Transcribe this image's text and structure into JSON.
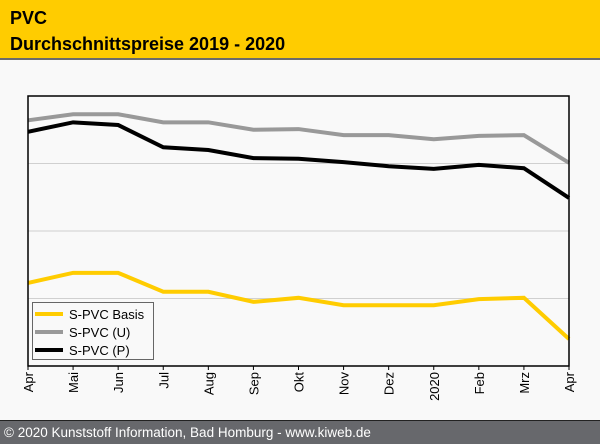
{
  "header": {
    "title": "PVC",
    "subtitle": "Durchschnittspreise 2019 - 2020",
    "background": "#ffcc00"
  },
  "footer": {
    "text": "© 2020 Kunststoff Information, Bad Homburg - www.kiweb.de"
  },
  "chart_data": {
    "type": "line",
    "title": "PVC Durchschnittspreise 2019 - 2020",
    "xlabel": "",
    "ylabel": "",
    "y_units": "relative (no y-axis labels shown; gridlines at 1, 2, 3)",
    "ylim": [
      0,
      4
    ],
    "grid": true,
    "legend_position": "bottom-left",
    "categories": [
      "Apr",
      "Mai",
      "Jun",
      "Jul",
      "Aug",
      "Sep",
      "Okt",
      "Nov",
      "Dez",
      "2020",
      "Feb",
      "Mrz",
      "Apr"
    ],
    "series": [
      {
        "name": "S-PVC Basis",
        "color": "#ffcc00",
        "values": [
          1.23,
          1.38,
          1.38,
          1.1,
          1.1,
          0.95,
          1.01,
          0.9,
          0.9,
          0.9,
          0.99,
          1.01,
          0.4
        ]
      },
      {
        "name": "S-PVC (U)",
        "color": "#999999",
        "values": [
          3.64,
          3.73,
          3.73,
          3.61,
          3.61,
          3.5,
          3.51,
          3.42,
          3.42,
          3.36,
          3.41,
          3.42,
          3.01
        ]
      },
      {
        "name": "S-PVC (P)",
        "color": "#000000",
        "values": [
          3.47,
          3.61,
          3.57,
          3.24,
          3.2,
          3.08,
          3.07,
          3.02,
          2.96,
          2.92,
          2.98,
          2.93,
          2.49
        ]
      }
    ]
  }
}
